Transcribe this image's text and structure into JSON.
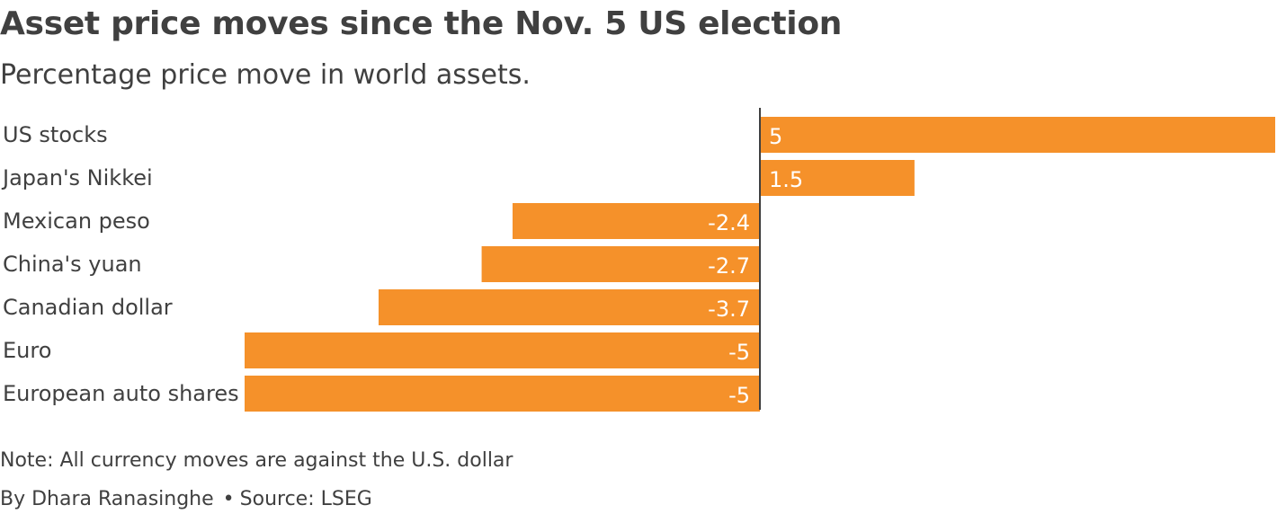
{
  "header": {
    "title": "Asset price moves since the Nov. 5 US election",
    "subtitle": "Percentage price move in world assets."
  },
  "footer": {
    "note": "Note: All currency moves are against the U.S. dollar",
    "byline": "By Dhara Ranasinghe",
    "separator": "•",
    "source": "Source: LSEG"
  },
  "colors": {
    "bar": "#f5912a",
    "axis": "#404040",
    "text": "#404040",
    "value_label": "#ffffff"
  },
  "chart_data": {
    "type": "bar",
    "orientation": "horizontal",
    "title": "Asset price moves since the Nov. 5 US election",
    "subtitle": "Percentage price move in world assets.",
    "categories": [
      "US stocks",
      "Japan's Nikkei",
      "Mexican peso",
      "China's yuan",
      "Canadian dollar",
      "Euro",
      "European auto shares"
    ],
    "values": [
      5,
      1.5,
      -2.4,
      -2.7,
      -3.7,
      -5,
      -5
    ],
    "value_labels": [
      "5",
      "1.5",
      "-2.4",
      "-2.7",
      "-3.7",
      "-5",
      "-5"
    ],
    "xlim": [
      -5,
      5
    ],
    "grid": false,
    "legend": "none"
  }
}
